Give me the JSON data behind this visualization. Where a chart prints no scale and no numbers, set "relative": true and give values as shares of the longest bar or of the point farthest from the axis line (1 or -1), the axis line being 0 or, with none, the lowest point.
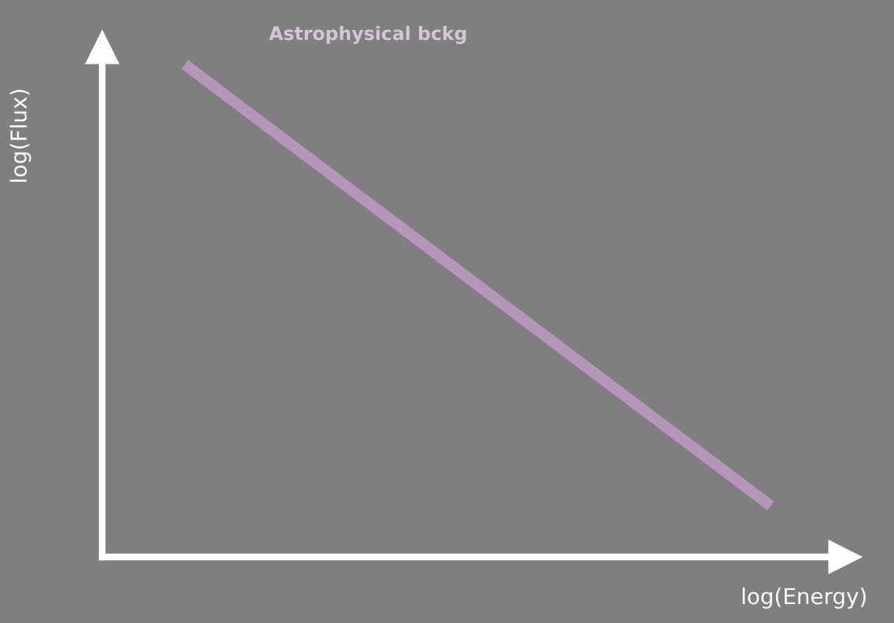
{
  "chart_data": {
    "type": "line",
    "relative": true,
    "xlabel": "log(Energy)",
    "ylabel": "log(Flux)",
    "categories": [
      null,
      null
    ],
    "series": [
      {
        "name": "Astrophysical bckg",
        "color": "#b595ba",
        "values": [
          1,
          0.104
        ]
      }
    ]
  }
}
